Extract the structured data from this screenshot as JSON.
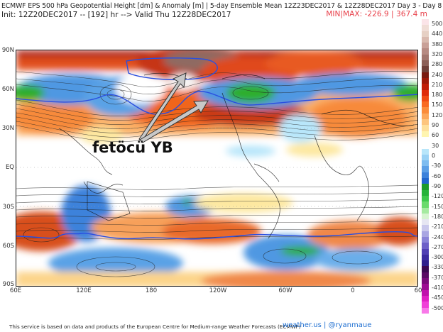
{
  "header": {
    "title_line1": "ECMWF EPS 500 hPa Geopotential Height [dm] & Anomaly [m] | 5-day Ensemble Mean 12Z23DEC2017 & 12Z28DEC2017  Day 3 - Day 8",
    "title_line2": "Init: 12Z20DEC2017 -- [192] hr --> Valid Thu 12Z28DEC2017",
    "minmax": "MIN|MAX: -226.9 | 367.4 m"
  },
  "map": {
    "annotation": "fetöcü YB",
    "lat_labels": [
      "90N",
      "60N",
      "30N",
      "EQ",
      "30S",
      "60S",
      "90S"
    ],
    "lon_labels": [
      "60E",
      "120E",
      "180",
      "120W",
      "60W",
      "0",
      "60"
    ],
    "accent_colors": {
      "ridge_red": "#d6361a",
      "ridge_brown": "#8a6a60",
      "trough_blue": "#3d8fe0",
      "trough_green": "#2fae2f",
      "contour_blue": "#2a4fe0",
      "arrow": "#c8c8c8"
    }
  },
  "colorbar": {
    "labels": [
      "500",
      "440",
      "380",
      "320",
      "280",
      "240",
      "210",
      "180",
      "150",
      "120",
      "90",
      "60",
      "30",
      "0",
      "-30",
      "-60",
      "-90",
      "-120",
      "-150",
      "-180",
      "-210",
      "-240",
      "-270",
      "-300",
      "-330",
      "-370",
      "-410",
      "-450",
      "-500"
    ],
    "colors": [
      "#fbe4e8",
      "#f0ddd6",
      "#e6d0c4",
      "#d9b9ae",
      "#c9a097",
      "#b78a82",
      "#a3766e",
      "#8c5f57",
      "#6f3f38",
      "#7a1a10",
      "#9e1808",
      "#c01c06",
      "#df2b0b",
      "#f04a14",
      "#f96a22",
      "#fb8c3b",
      "#fca85c",
      "#fdc57e",
      "#fee09c",
      "#fff5b0",
      "#ffffff",
      "#ffffff",
      "#b8e6fa",
      "#9ad2f5",
      "#7ebcf0",
      "#5c9fe6",
      "#3d82db",
      "#2266cc",
      "#1e9b2a",
      "#27b33a",
      "#3fc94d",
      "#6bdb6c",
      "#a5eaa0",
      "#d6f4d0",
      "#e6e6f2",
      "#c9c8ec",
      "#a9a6e2",
      "#8a84d8",
      "#6d60c8",
      "#5140b4",
      "#3c2ba0",
      "#2f1f8c",
      "#3b0850",
      "#5a0a64",
      "#7a0a7a",
      "#9c0c92",
      "#c010ac",
      "#e020c4",
      "#f040d8",
      "#f878e8"
    ]
  },
  "footer": {
    "disclaimer": "This service is based on data and products of the European Centre for Medium-range Weather Forecasts (ECMWF)",
    "credit": "weather.us | @ryanmaue"
  }
}
